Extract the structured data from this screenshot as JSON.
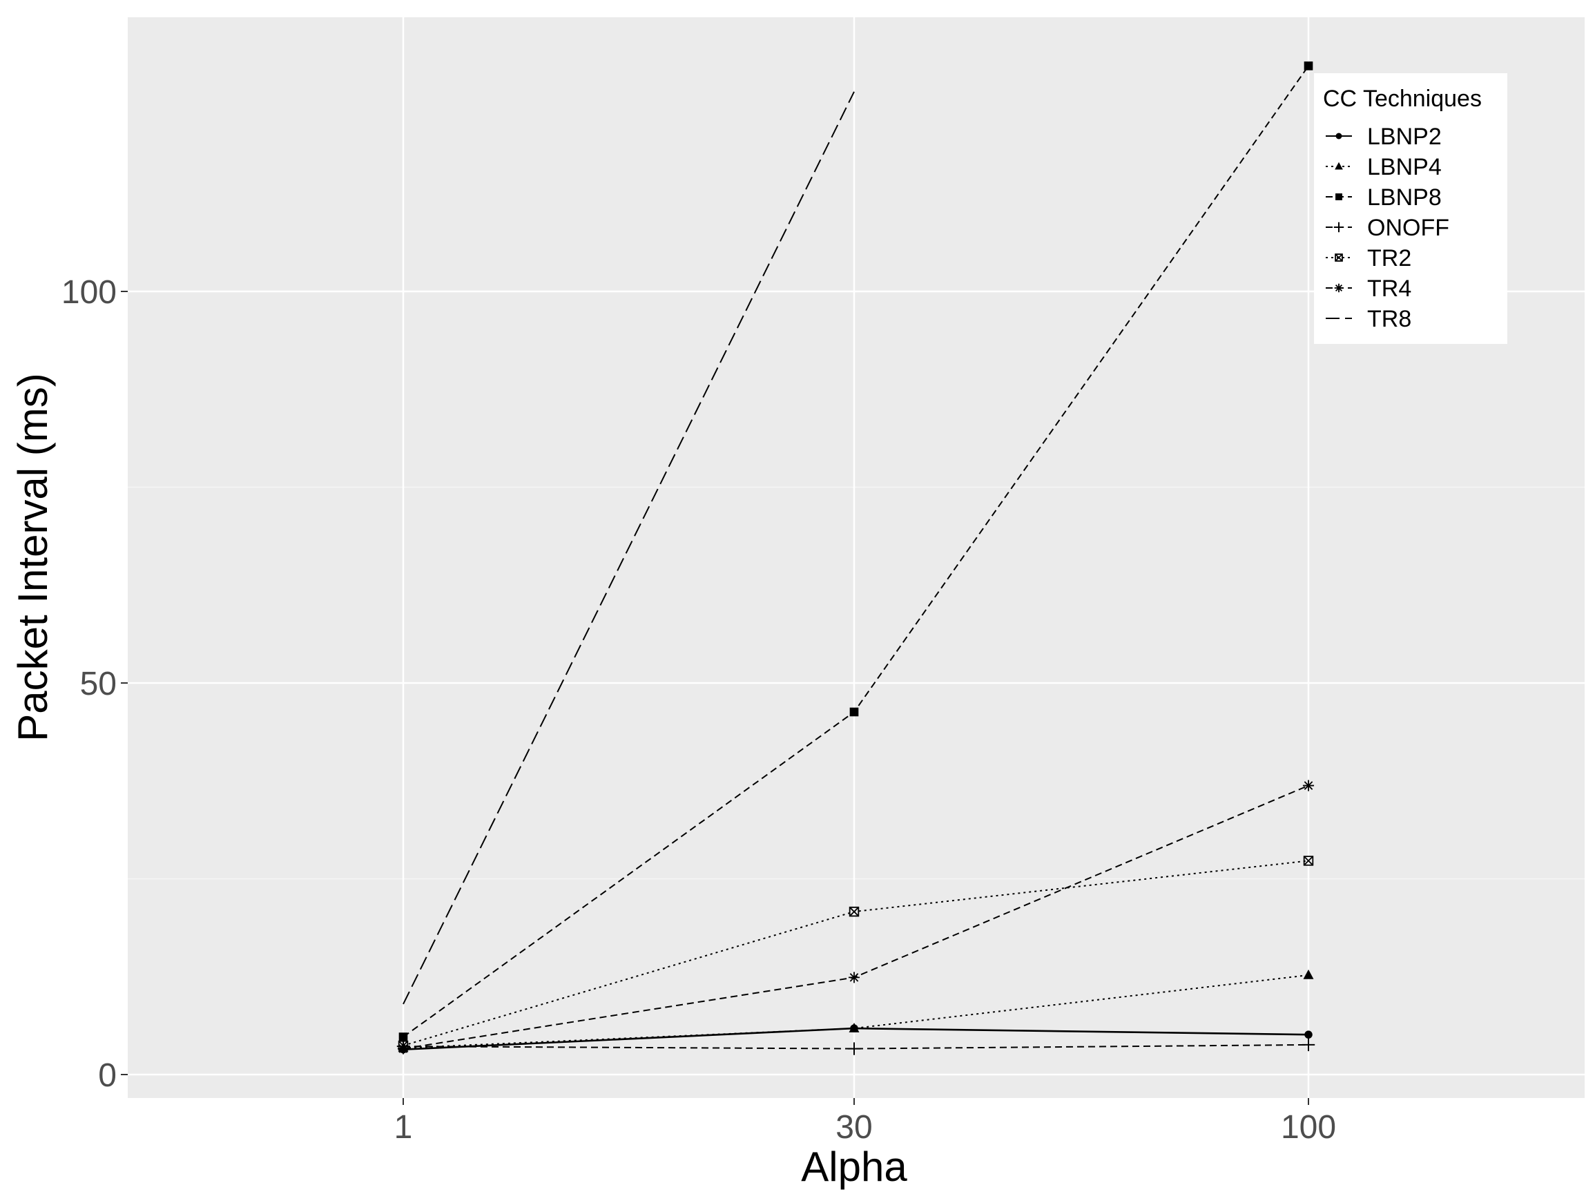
{
  "chart_data": {
    "type": "line",
    "xlabel": "Alpha",
    "ylabel": "Packet Interval (ms)",
    "x": [
      "1",
      "30",
      "100"
    ],
    "ylim": [
      -3,
      135
    ],
    "yticks": [
      0,
      50,
      100
    ],
    "grid": true,
    "legend_position": "top-right",
    "legend_title": "CC Techniques",
    "series": [
      {
        "name": "LBNP2",
        "values": [
          3.2,
          5.9,
          5.1
        ],
        "linestyle": "solid",
        "marker": "circle"
      },
      {
        "name": "LBNP4",
        "values": [
          3.4,
          5.9,
          12.7
        ],
        "linestyle": "dotted",
        "marker": "triangle"
      },
      {
        "name": "LBNP8",
        "values": [
          4.8,
          46.3,
          128.8
        ],
        "linestyle": "dashed",
        "marker": "square"
      },
      {
        "name": "ONOFF",
        "values": [
          3.6,
          3.3,
          3.8
        ],
        "linestyle": "dashed",
        "marker": "plus"
      },
      {
        "name": "TR2",
        "values": [
          3.7,
          20.8,
          27.3
        ],
        "linestyle": "dotted",
        "marker": "boxcross"
      },
      {
        "name": "TR4",
        "values": [
          3.3,
          12.4,
          36.9
        ],
        "linestyle": "dashed",
        "marker": "asterisk"
      },
      {
        "name": "TR8",
        "values": [
          9.0,
          125.5,
          null
        ],
        "linestyle": "longdash",
        "marker": "none"
      }
    ]
  },
  "colors": {
    "panel_background": "#ebebeb",
    "grid_major": "#ffffff",
    "grid_minor": "#f5f5f5",
    "series": "#000000",
    "tick_label": "#4d4d4d"
  }
}
